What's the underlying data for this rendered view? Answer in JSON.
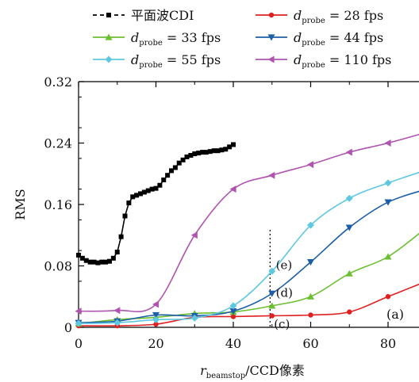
{
  "chart_data": {
    "type": "line",
    "panel_label": "(a)",
    "ylabel": "RMS",
    "xlabel": {
      "var": "r",
      "sub": "beamstop",
      "rest": "/CCD像素"
    },
    "xlim": [
      0,
      88
    ],
    "ylim": [
      0,
      0.32
    ],
    "x_ticks": [
      {
        "value": 0,
        "label": "0"
      },
      {
        "value": 20,
        "label": "20"
      },
      {
        "value": 40,
        "label": "40"
      },
      {
        "value": 60,
        "label": "60"
      },
      {
        "value": 80,
        "label": "80"
      }
    ],
    "y_ticks": [
      {
        "value": 0,
        "label": "0"
      },
      {
        "value": 0.08,
        "label": "0.08"
      },
      {
        "value": 0.16,
        "label": "0.16"
      },
      {
        "value": 0.24,
        "label": "0.24"
      },
      {
        "value": 0.32,
        "label": "0.32"
      }
    ],
    "grid": false,
    "legend_position": "top",
    "annotations": [
      {
        "label": "(e)",
        "x": 51,
        "y": 0.081
      },
      {
        "label": "(d)",
        "x": 51,
        "y": 0.045
      },
      {
        "label": "(c)",
        "x": 50.5,
        "y": 0.004
      }
    ],
    "marker_line_x": 49.5,
    "series": [
      {
        "name": "平面波CDI",
        "color": "#000000",
        "marker": "square",
        "dashed": true,
        "x": [
          0,
          1,
          2,
          3,
          4,
          5,
          6,
          7,
          8,
          9,
          10,
          11,
          12,
          13,
          14,
          15,
          16,
          17,
          18,
          19,
          20,
          21,
          22,
          23,
          24,
          25,
          26,
          27,
          28,
          29,
          30,
          31,
          32,
          33,
          34,
          35,
          36,
          37,
          38,
          39,
          40
        ],
        "y": [
          0.094,
          0.09,
          0.087,
          0.085,
          0.085,
          0.084,
          0.085,
          0.085,
          0.086,
          0.09,
          0.098,
          0.118,
          0.145,
          0.162,
          0.17,
          0.172,
          0.174,
          0.176,
          0.178,
          0.18,
          0.181,
          0.185,
          0.192,
          0.198,
          0.204,
          0.208,
          0.214,
          0.218,
          0.222,
          0.224,
          0.226,
          0.227,
          0.228,
          0.228,
          0.229,
          0.23,
          0.23,
          0.231,
          0.232,
          0.235,
          0.238
        ]
      },
      {
        "name": "28 fps",
        "sub_label": true,
        "color": "#e02020",
        "marker": "circle",
        "x": [
          0,
          10,
          20,
          30,
          40,
          50,
          60,
          70,
          80,
          90
        ],
        "y": [
          0.002,
          0.002,
          0.004,
          0.013,
          0.014,
          0.015,
          0.016,
          0.02,
          0.04,
          0.06
        ]
      },
      {
        "name": "33 fps",
        "sub_label": true,
        "color": "#6cbf2e",
        "marker": "triangle-up",
        "x": [
          0,
          10,
          20,
          30,
          40,
          50,
          60,
          70,
          80,
          90
        ],
        "y": [
          0.005,
          0.01,
          0.013,
          0.018,
          0.02,
          0.028,
          0.04,
          0.07,
          0.092,
          0.13
        ]
      },
      {
        "name": "44 fps",
        "sub_label": true,
        "color": "#1c5fa8",
        "marker": "triangle-down",
        "x": [
          0,
          10,
          20,
          30,
          40,
          50,
          60,
          70,
          80,
          90
        ],
        "y": [
          0.006,
          0.008,
          0.016,
          0.015,
          0.021,
          0.044,
          0.085,
          0.13,
          0.163,
          0.18
        ]
      },
      {
        "name": "55 fps",
        "sub_label": true,
        "color": "#5ec8e0",
        "marker": "diamond",
        "x": [
          0,
          10,
          20,
          30,
          40,
          50,
          60,
          70,
          80,
          90
        ],
        "y": [
          0.005,
          0.006,
          0.01,
          0.012,
          0.028,
          0.073,
          0.133,
          0.168,
          0.188,
          0.205
        ]
      },
      {
        "name": "110 fps",
        "sub_label": true,
        "color": "#b054b0",
        "marker": "triangle-left",
        "x": [
          0,
          10,
          20,
          30,
          40,
          50,
          60,
          70,
          80,
          90
        ],
        "y": [
          0.021,
          0.022,
          0.03,
          0.12,
          0.18,
          0.198,
          0.212,
          0.228,
          0.24,
          0.254
        ]
      }
    ]
  }
}
